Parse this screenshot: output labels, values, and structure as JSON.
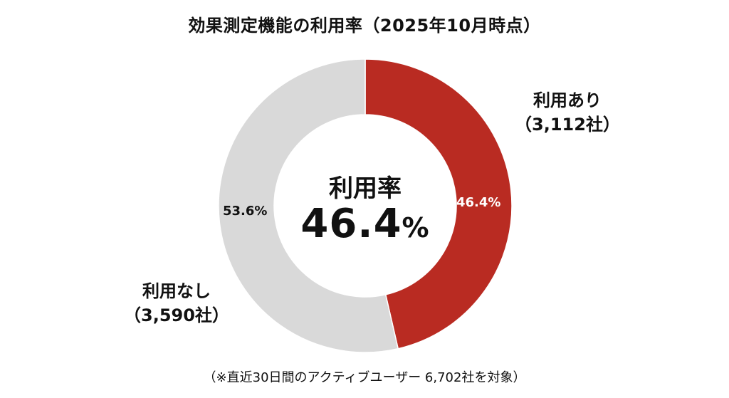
{
  "title": "効果測定機能の利用率（2025年10月時点）",
  "center": {
    "caption": "利用率",
    "value": "46.4",
    "unit": "%"
  },
  "segments": [
    {
      "name": "利用あり",
      "count_label": "（3,112社）",
      "percent_label": "46.4%",
      "color": "#b92b22"
    },
    {
      "name": "利用なし",
      "count_label": "（3,590社）",
      "percent_label": "53.6%",
      "color": "#d9d9d9"
    }
  ],
  "footnote": "（※直近30日間のアクティブユーザー 6,702社を対象）",
  "chart_data": {
    "type": "pie",
    "subtype": "donut",
    "title": "効果測定機能の利用率（2025年10月時点）",
    "categories": [
      "利用あり",
      "利用なし"
    ],
    "values": [
      46.4,
      53.6
    ],
    "counts": [
      3112,
      3590
    ],
    "total": 6702,
    "unit": "%",
    "colors": [
      "#b92b22",
      "#d9d9d9"
    ],
    "center_text": "利用率 46.4%",
    "note": "（※直近30日間のアクティブユーザー 6,702社を対象）",
    "start_angle": "12 o'clock, clockwise"
  }
}
